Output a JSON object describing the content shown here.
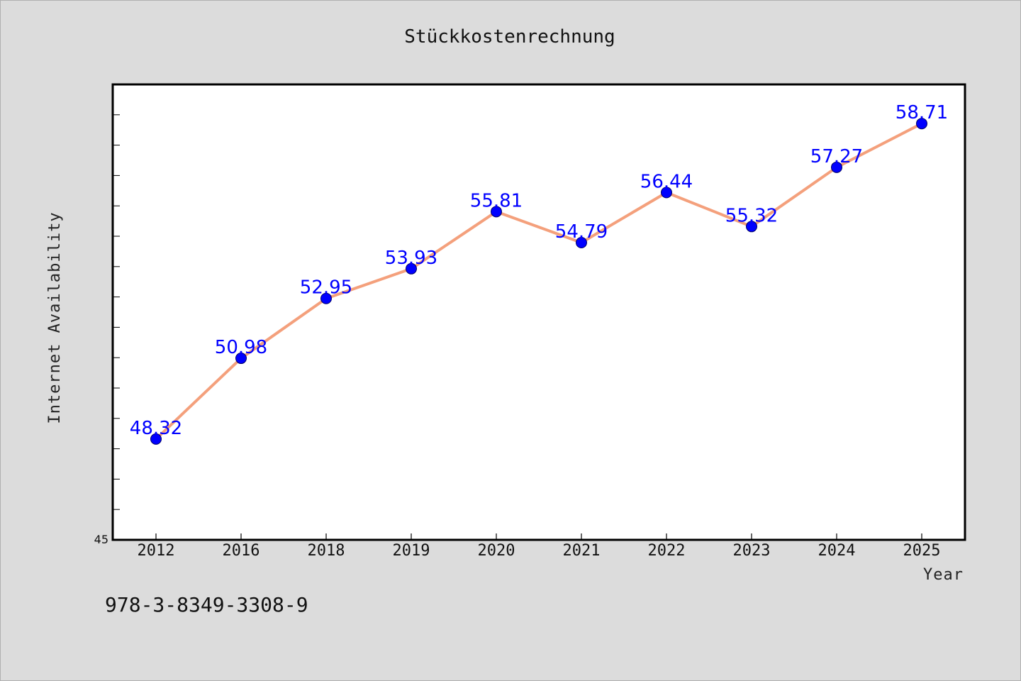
{
  "chart_data": {
    "type": "line",
    "title": "Stückkostenrechnung",
    "xlabel": "Year",
    "ylabel": "Internet Availability",
    "categories": [
      "2012",
      "2016",
      "2018",
      "2019",
      "2020",
      "2021",
      "2022",
      "2023",
      "2024",
      "2025"
    ],
    "series": [
      {
        "values": [
          48.32,
          50.98,
          52.95,
          53.93,
          55.81,
          54.79,
          56.44,
          55.32,
          57.27,
          58.71
        ],
        "data_labels": [
          "48.32",
          "50.98",
          "52.95",
          "53.93",
          "55.81",
          "54.79",
          "56.44",
          "55.32",
          "57.27",
          "58.71"
        ]
      }
    ],
    "ylim": [
      45,
      60
    ],
    "y_tick_labels": [
      "45"
    ],
    "grid": false,
    "line_color": "#f4a07c",
    "marker_color": "#0000ff",
    "label_color": "#0000ff",
    "plot_background": "#ffffff",
    "page_background": "#dcdcdc"
  },
  "footer": {
    "isbn": "978-3-8349-3308-9"
  }
}
